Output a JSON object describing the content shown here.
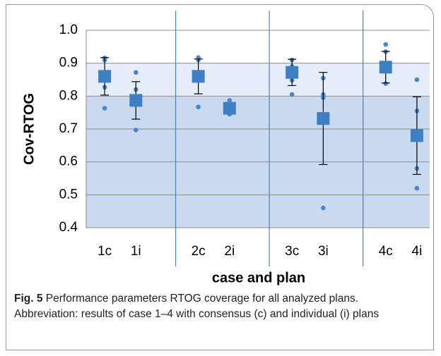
{
  "chart_data": {
    "type": "dot",
    "y_label": "Cov-RTOG",
    "x_label": "case and plan",
    "categories": [
      "1c",
      "1i",
      null,
      "2c",
      "2i",
      null,
      "3c",
      "3i",
      null,
      "4c",
      "4i"
    ],
    "values": [
      0.86,
      0.787,
      null,
      0.86,
      0.763,
      null,
      0.872,
      0.732,
      null,
      0.888,
      0.68
    ],
    "errors": [
      0.057,
      0.057,
      null,
      0.053,
      0.015,
      null,
      0.04,
      0.14,
      null,
      0.048,
      0.118
    ],
    "points": [
      [
        0.916,
        0.91,
        0.862,
        0.827,
        0.763
      ],
      [
        0.872,
        0.82,
        0.787,
        0.697
      ],
      null,
      [
        0.917,
        0.91,
        0.86,
        0.767
      ],
      [
        0.787,
        0.765,
        0.745
      ],
      null,
      [
        0.91,
        0.89,
        0.86,
        0.848,
        0.805
      ],
      [
        0.855,
        0.805,
        0.795,
        0.46
      ],
      null,
      [
        0.957,
        0.935,
        0.885,
        0.838
      ],
      [
        0.85,
        0.755,
        0.58,
        0.52
      ]
    ],
    "color": "#3f7fc4",
    "point_color": "#4a87c9",
    "bands": [
      {
        "from": 0.4,
        "to": 0.8,
        "color": "#c9d9ef"
      },
      {
        "from": 0.8,
        "to": 0.9,
        "color": "#e5edf8"
      }
    ],
    "ylim": [
      0.4,
      1.0
    ],
    "yticks": [
      {
        "value": 0.4,
        "label": "0.4"
      },
      0.5,
      0.6,
      0.7,
      0.8,
      0.9,
      {
        "value": 1.0,
        "label": "1.0"
      }
    ],
    "grid": true
  },
  "caption": {
    "label": "Fig. 5",
    "text": "Performance parameters RTOG coverage for all analyzed plans. Abbreviation: results of case 1–4 with consensus (c) and individual (i) plans"
  }
}
